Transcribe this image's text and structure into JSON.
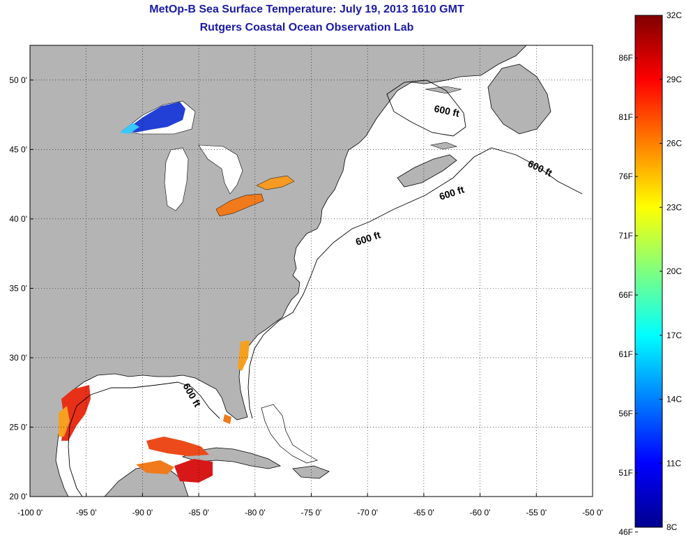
{
  "title": {
    "line1": "MetOp-B Sea Surface Temperature:  July 19, 2013 1610 GMT",
    "line2": "Rutgers Coastal Ocean Observation Lab"
  },
  "map": {
    "lon_range": [
      -100,
      -50
    ],
    "lat_range": [
      20,
      52.5
    ],
    "grid": true,
    "x_ticks": [
      "-100 0'",
      "-95 0'",
      "-90 0'",
      "-85 0'",
      "-80 0'",
      "-75 0'",
      "-70 0'",
      "-65 0'",
      "-60 0'",
      "-55 0'",
      "-50 0'"
    ],
    "y_ticks": [
      "20 0'",
      "25 0'",
      "30 0'",
      "35 0'",
      "40 0'",
      "45 0'",
      "50 0'"
    ],
    "land_color": "#b4b4b4",
    "no_data_color": "#ffffff",
    "isobath_label": "600 ft"
  },
  "colorbar": {
    "min_c": 8,
    "max_c": 32,
    "celsius_labels": [
      "32C",
      "29C",
      "26C",
      "23C",
      "20C",
      "17C",
      "14C",
      "11C",
      "8C"
    ],
    "fahrenheit_labels": [
      "86F",
      "81F",
      "76F",
      "71F",
      "66F",
      "61F",
      "56F",
      "51F",
      "46F"
    ],
    "colormap": "jet"
  }
}
